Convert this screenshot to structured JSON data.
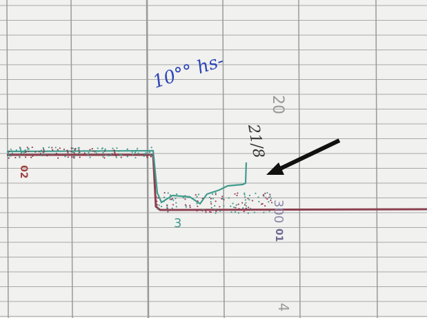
{
  "annotations": {
    "time_note": "10°° hs-",
    "date_note": "21/8"
  },
  "scale_labels": {
    "top": "20",
    "left_channel": "02",
    "trace_mark": "3",
    "middle": "300",
    "middle_sub": "01",
    "bottom": "4"
  }
}
